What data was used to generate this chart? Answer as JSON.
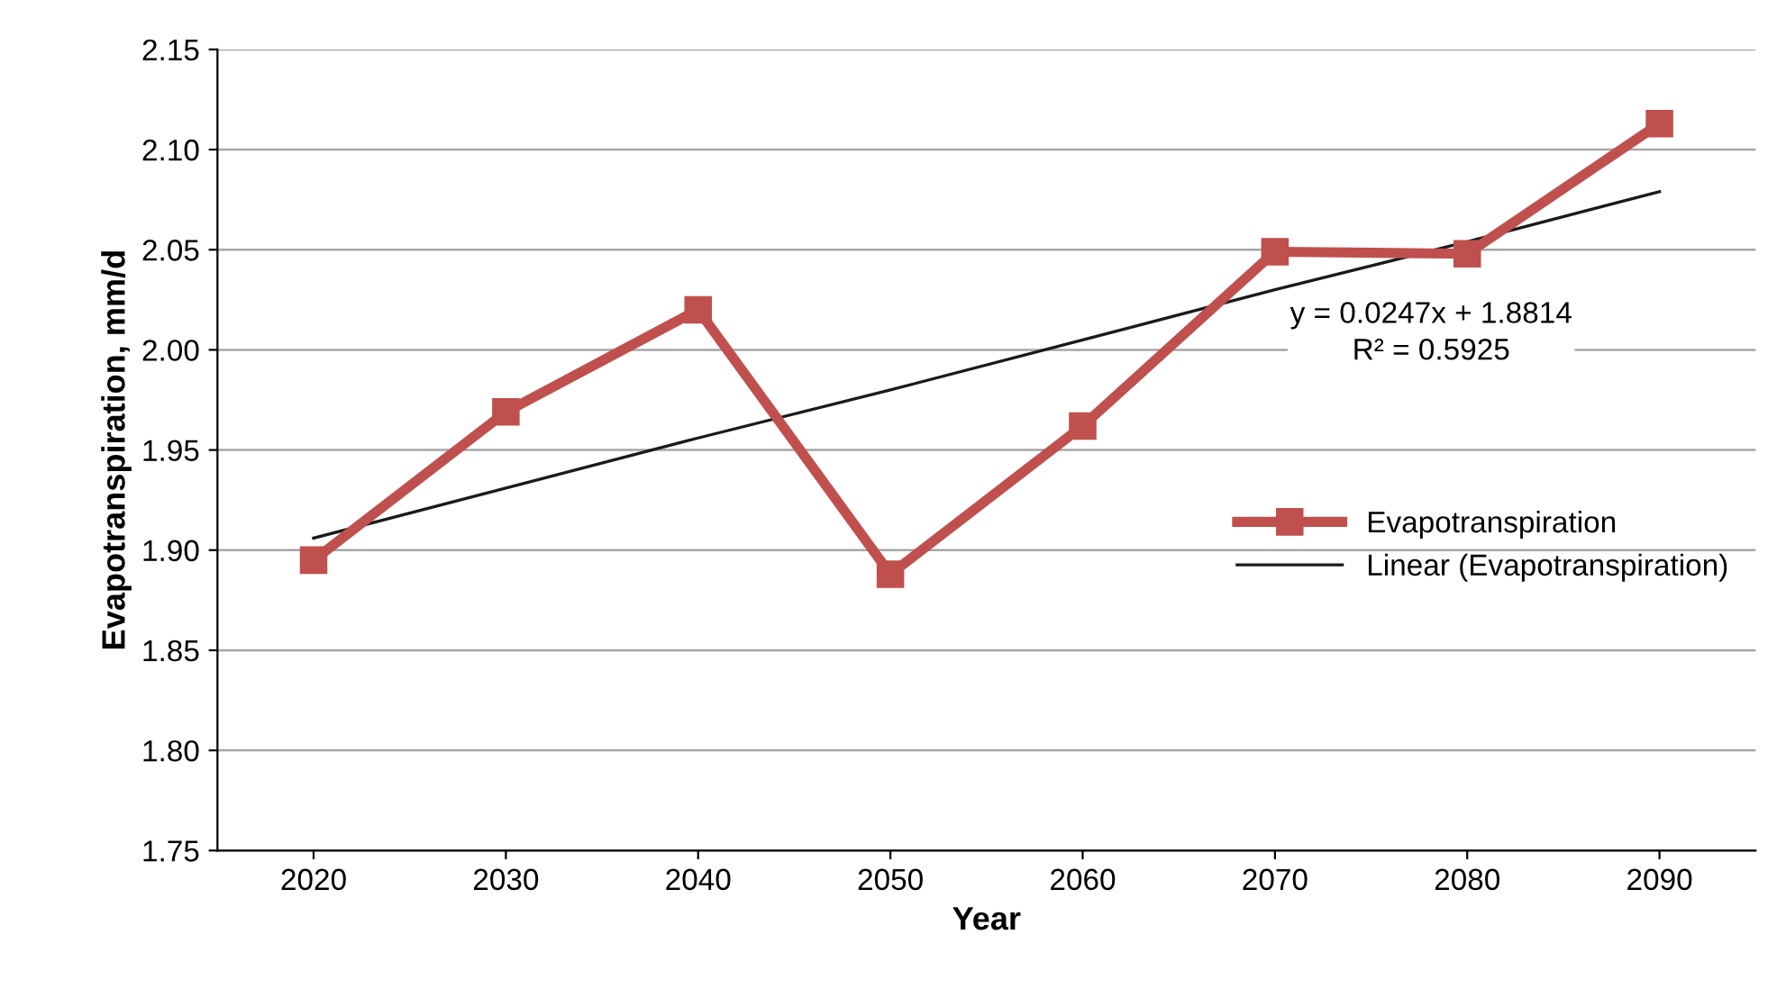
{
  "chart_data": {
    "type": "line",
    "xlabel": "Year",
    "ylabel": "Evapotranspiration, mm/d",
    "categories": [
      "2020",
      "2030",
      "2040",
      "2050",
      "2060",
      "2070",
      "2080",
      "2090"
    ],
    "series": [
      {
        "name": "Evapotranspiration",
        "color": "#c0504d",
        "marker": "square",
        "values": [
          1.895,
          1.969,
          2.02,
          1.888,
          1.962,
          2.049,
          2.048,
          2.113
        ]
      },
      {
        "name": "Linear (Evapotranspiration)",
        "color": "#1a1a1a",
        "marker": "none",
        "values": [
          1.906,
          1.931,
          1.956,
          1.98,
          2.005,
          2.03,
          2.054,
          2.079
        ]
      }
    ],
    "ylim": [
      1.75,
      2.15
    ],
    "yticks": [
      {
        "value": 1.75,
        "label": "1.75"
      },
      {
        "value": 1.8,
        "label": "1.80"
      },
      {
        "value": 1.85,
        "label": "1.85"
      },
      {
        "value": 1.9,
        "label": "1.90"
      },
      {
        "value": 1.95,
        "label": "1.95"
      },
      {
        "value": 2.0,
        "label": "2.00"
      },
      {
        "value": 2.05,
        "label": "2.05"
      },
      {
        "value": 2.1,
        "label": "2.10"
      },
      {
        "value": 2.15,
        "label": "2.15"
      }
    ],
    "annotations": [
      {
        "text": "y = 0.0247x + 1.8814\nR² = 0.5925",
        "x": "2080",
        "y": 2.0543
      }
    ],
    "grid": "y",
    "legend": "right"
  }
}
